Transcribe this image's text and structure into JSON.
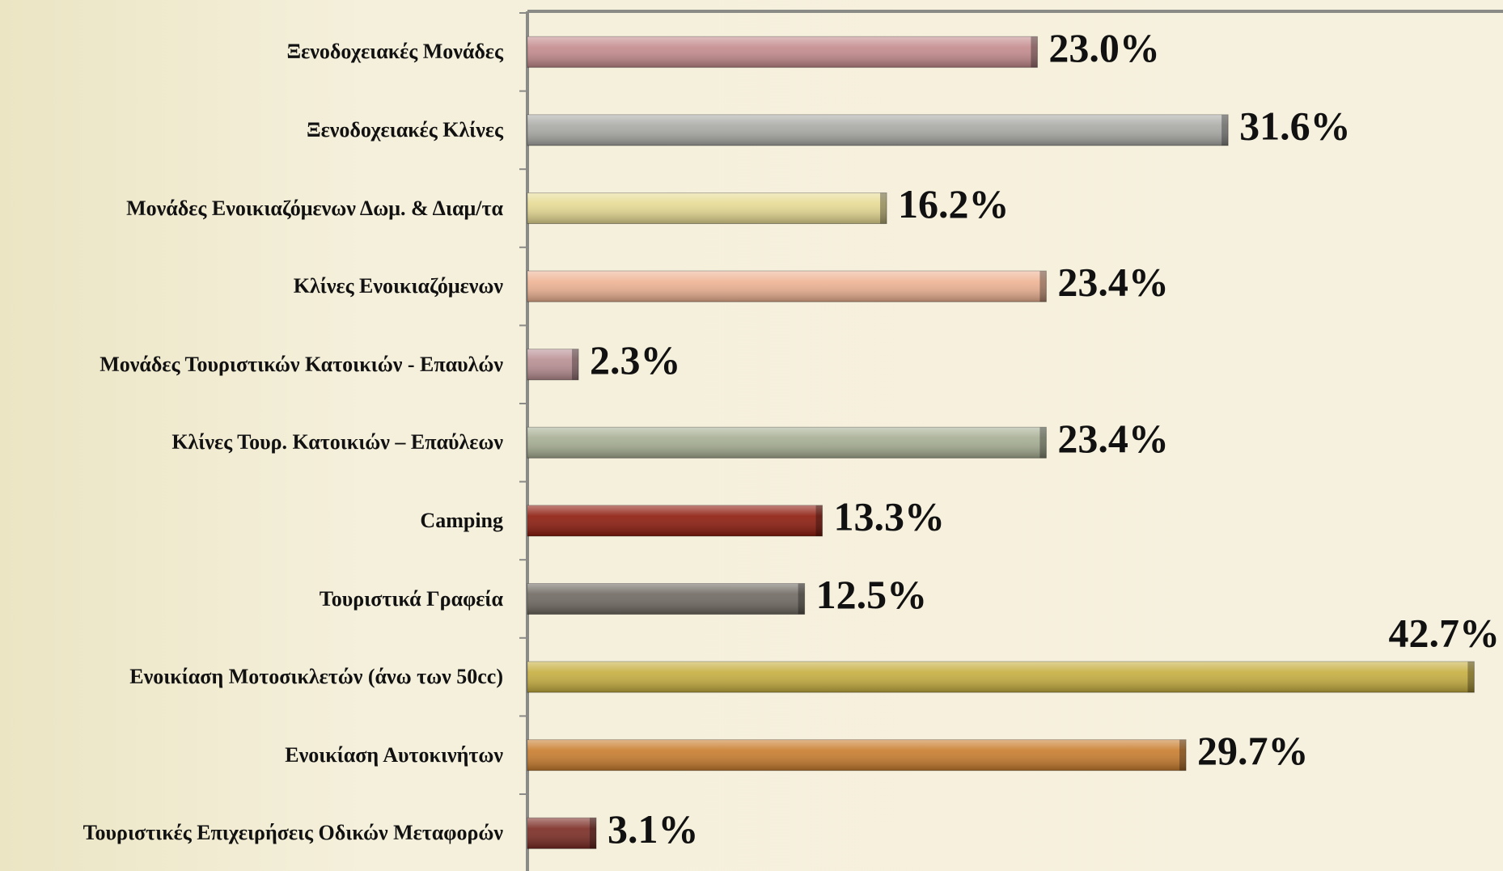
{
  "chart_data": {
    "type": "bar",
    "orientation": "horizontal",
    "categories": [
      "Ξενοδοχειακές Μονάδες",
      "Ξενοδοχειακές Κλίνες",
      "Μονάδες Ενοικιαζόμενων Δωμ. & Διαμ/τα",
      "Κλίνες Ενοικιαζόμενων",
      "Μονάδες Τουριστικών Κατοικιών - Επαυλών",
      "Κλίνες Τουρ. Κατοικιών – Επαύλεων",
      "Camping",
      "Τουριστικά Γραφεία",
      "Ενοικίαση Μοτοσικλετών (άνω των 50cc)",
      "Ενοικίαση Αυτοκινήτων",
      "Τουριστικές Επιχειρήσεις Οδικών Μεταφορών"
    ],
    "values": [
      23.0,
      31.6,
      16.2,
      23.4,
      2.3,
      23.4,
      13.3,
      12.5,
      42.7,
      29.7,
      3.1
    ],
    "value_labels": [
      "23.0%",
      "31.6%",
      "16.2%",
      "23.4%",
      "2.3%",
      "23.4%",
      "13.3%",
      "12.5%",
      "42.7%",
      "29.7%",
      "3.1%"
    ],
    "colors": [
      "#c48a8c",
      "#a9a9a5",
      "#e6da92",
      "#eeb292",
      "#b88e92",
      "#a6ae92",
      "#8c1a0c",
      "#6e6860",
      "#c6ae3e",
      "#c97c2c",
      "#7a2a22"
    ],
    "xlim": [
      0,
      44
    ]
  }
}
